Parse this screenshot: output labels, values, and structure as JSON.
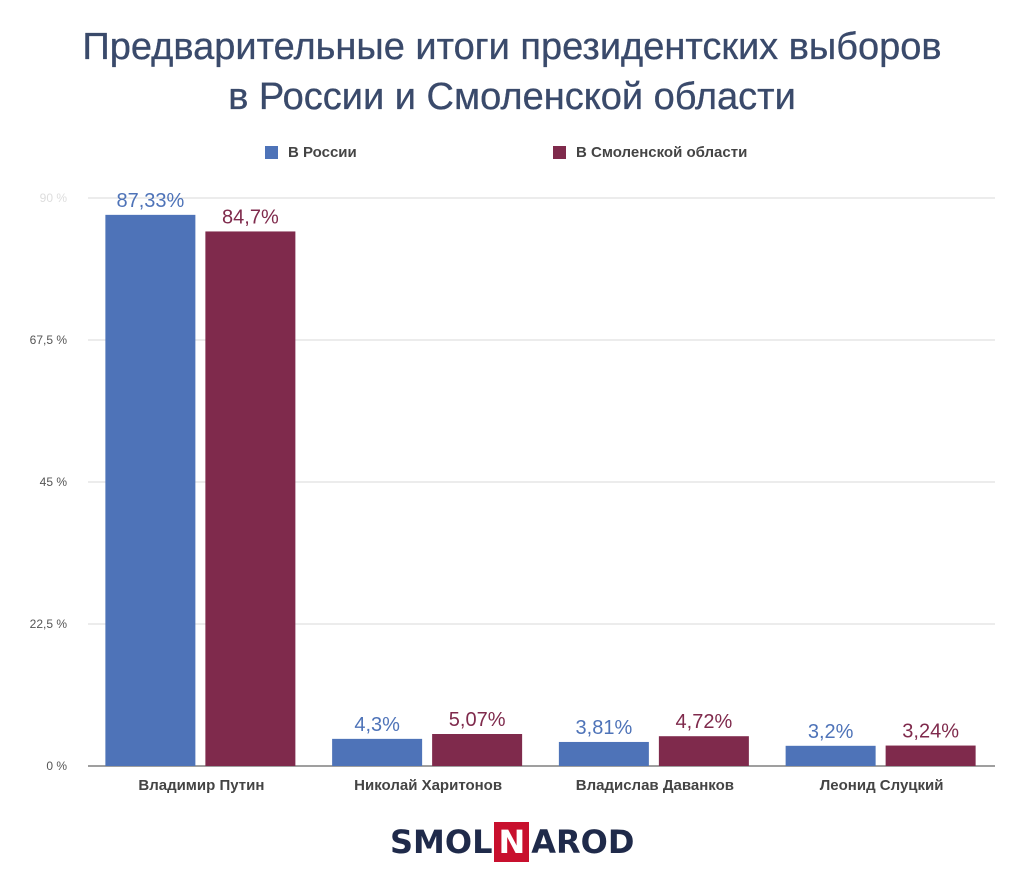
{
  "title_line1": "Предварительные итоги президентских выборов",
  "title_line2": "в России и Смоленской области",
  "legend": [
    {
      "label": "В России",
      "color": "#4e73b8"
    },
    {
      "label": "В Смоленской области",
      "color": "#7f2a4c"
    }
  ],
  "chart_data": {
    "type": "bar",
    "categories": [
      "Владимир Путин",
      "Николай Харитонов",
      "Владислав Даванков",
      "Леонид Слуцкий"
    ],
    "series": [
      {
        "name": "В России",
        "values": [
          87.33,
          4.3,
          3.81,
          3.2
        ],
        "labels": [
          "87,33%",
          "4,3%",
          "3,81%",
          "3,2%"
        ],
        "color": "#4e73b8"
      },
      {
        "name": "В Смоленской области",
        "values": [
          84.7,
          5.07,
          4.72,
          3.24
        ],
        "labels": [
          "84,7%",
          "5,07%",
          "4,72%",
          "3,24%"
        ],
        "color": "#7f2a4c"
      }
    ],
    "y_ticks": [
      {
        "value": 0,
        "label": "0 %"
      },
      {
        "value": 22.5,
        "label": "22,5 %"
      },
      {
        "value": 45,
        "label": "45 %"
      },
      {
        "value": 67.5,
        "label": "67,5 %"
      },
      {
        "value": 90,
        "label": "90 %"
      }
    ],
    "ylim": [
      0,
      90
    ],
    "grid": true,
    "legend_position": "top"
  },
  "logo": {
    "part1": "SMOL",
    "part2": "N",
    "part3": "AROD"
  }
}
